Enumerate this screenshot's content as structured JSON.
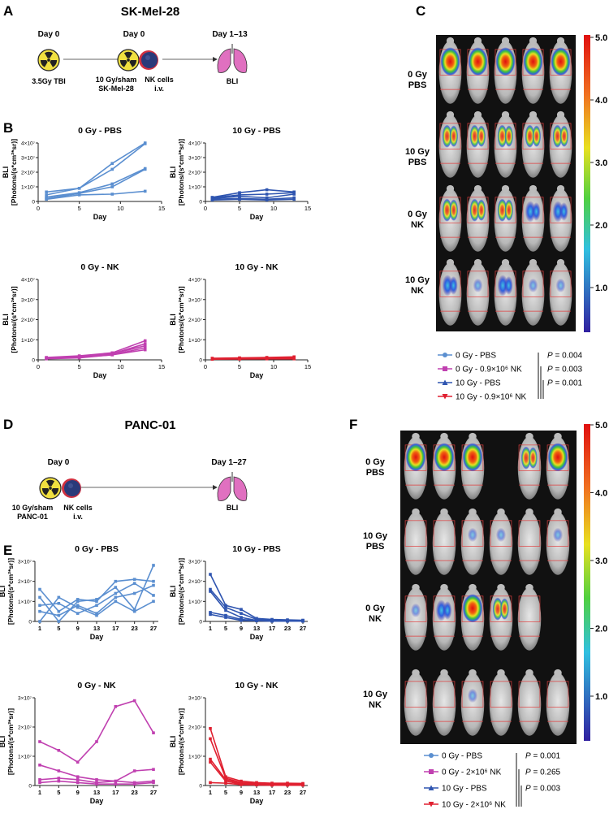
{
  "colors": {
    "pbs0": "#5b8fd0",
    "pbs10": "#2f55b0",
    "nk0": "#c040b0",
    "nk10": "#e02030",
    "lung": "#e070c0",
    "rad_yellow": "#f0e040",
    "cell_blue": "#2a3a7a",
    "cell_red": "#c02030"
  },
  "panelA": {
    "letter": "A",
    "title": "SK-Mel-28",
    "day_left": "Day 0",
    "day_mid": "Day 0",
    "day_right": "Day 1–13",
    "label_tbi": "3.5Gy TBI",
    "label_irr_1": "10 Gy/sham",
    "label_irr_2": "SK-Mel-28",
    "label_nk_1": "NK cells",
    "label_nk_2": "i.v.",
    "label_bli": "BLI"
  },
  "panelD": {
    "letter": "D",
    "title": "PANC-01",
    "day_left": "Day 0",
    "day_right": "Day 1–27",
    "label_irr_1": "10 Gy/sham",
    "label_irr_2": "PANC-01",
    "label_nk_1": "NK cells",
    "label_nk_2": "i.v.",
    "label_bli": "BLI"
  },
  "panelB": {
    "letter": "B"
  },
  "panelE": {
    "letter": "E"
  },
  "panelC": {
    "letter": "C",
    "rows": [
      [
        "0 Gy",
        "PBS"
      ],
      [
        "10 Gy",
        "PBS"
      ],
      [
        "0 Gy",
        "NK"
      ],
      [
        "10 Gy",
        "NK"
      ]
    ],
    "scale_ticks": [
      "5.0",
      "4.0",
      "3.0",
      "2.0",
      "1.0"
    ],
    "legend": [
      "0 Gy - PBS",
      "0 Gy - 0.9×10⁶ NK",
      "10 Gy - PBS",
      "10 Gy - 0.9×10⁶ NK"
    ],
    "pvalues": [
      "P = 0.004",
      "P = 0.003",
      "P = 0.001"
    ]
  },
  "panelF": {
    "letter": "F",
    "rows": [
      [
        "0 Gy",
        "PBS"
      ],
      [
        "10 Gy",
        "PBS"
      ],
      [
        "0 Gy",
        "NK"
      ],
      [
        "10 Gy",
        "NK"
      ]
    ],
    "scale_ticks": [
      "5.0",
      "4.0",
      "3.0",
      "2.0",
      "1.0"
    ],
    "legend": [
      "0 Gy - PBS",
      "0 Gy - 2×10⁶ NK",
      "10 Gy - PBS",
      "10 Gy - 2×10⁶ NK"
    ],
    "pvalues": [
      "P = 0.001",
      "P = 0.265",
      "P = 0.003"
    ]
  },
  "chart_data": [
    {
      "type": "line",
      "panel": "B",
      "title": "0 Gy - PBS",
      "xlabel": "Day",
      "ylabel": "BLI",
      "ylabel2": "[Photons/(s*cm²*sr)]",
      "xlim": [
        0,
        15
      ],
      "xticks": [
        0,
        5,
        10,
        15
      ],
      "ylim": [
        0,
        40000000
      ],
      "yticks": [
        "0",
        "1×10⁷",
        "2×10⁷",
        "3×10⁷",
        "4×10⁷"
      ],
      "x": [
        1,
        5,
        9,
        13
      ],
      "series": [
        {
          "name": "m1",
          "values": [
            6500000,
            9000000,
            26000000,
            40000000
          ]
        },
        {
          "name": "m2",
          "values": [
            4500000,
            9000000,
            22000000,
            39500000
          ]
        },
        {
          "name": "m3",
          "values": [
            3000000,
            6000000,
            12000000,
            22500000
          ]
        },
        {
          "name": "m4",
          "values": [
            2000000,
            5500000,
            10000000,
            22000000
          ]
        },
        {
          "name": "m5",
          "values": [
            1500000,
            4500000,
            5000000,
            7000000
          ]
        }
      ]
    },
    {
      "type": "line",
      "panel": "B",
      "title": "10 Gy - PBS",
      "xlabel": "Day",
      "ylabel": "BLI",
      "ylabel2": "[Photons/(s*cm²*sr)]",
      "xlim": [
        0,
        15
      ],
      "xticks": [
        0,
        5,
        10,
        15
      ],
      "ylim": [
        0,
        40000000
      ],
      "yticks": [
        "0",
        "1×10⁷",
        "2×10⁷",
        "3×10⁷",
        "4×10⁷"
      ],
      "x": [
        1,
        5,
        9,
        13
      ],
      "series": [
        {
          "name": "m1",
          "values": [
            2800000,
            6000000,
            8000000,
            6500000
          ]
        },
        {
          "name": "m2",
          "values": [
            2500000,
            4500000,
            5000000,
            6000000
          ]
        },
        {
          "name": "m3",
          "values": [
            2000000,
            3500000,
            2500000,
            5000000
          ]
        },
        {
          "name": "m4",
          "values": [
            1500000,
            2000000,
            1500000,
            2500000
          ]
        },
        {
          "name": "m5",
          "values": [
            1000000,
            1500000,
            1000000,
            1500000
          ]
        }
      ]
    },
    {
      "type": "line",
      "panel": "B",
      "title": "0 Gy - NK",
      "xlabel": "Day",
      "ylabel": "BLI",
      "ylabel2": "[Photons/(s*cm²*sr)]",
      "xlim": [
        0,
        15
      ],
      "xticks": [
        0,
        5,
        10,
        15
      ],
      "ylim": [
        0,
        40000000
      ],
      "yticks": [
        "0",
        "1×10⁷",
        "2×10⁷",
        "3×10⁷",
        "4×10⁷"
      ],
      "x": [
        1,
        5,
        9,
        13
      ],
      "series": [
        {
          "name": "m1",
          "values": [
            1200000,
            2000000,
            3500000,
            9500000
          ]
        },
        {
          "name": "m2",
          "values": [
            1000000,
            1800000,
            3000000,
            8000000
          ]
        },
        {
          "name": "m3",
          "values": [
            800000,
            1500000,
            3000000,
            7000000
          ]
        },
        {
          "name": "m4",
          "values": [
            700000,
            1200000,
            2500000,
            6000000
          ]
        },
        {
          "name": "m5",
          "values": [
            500000,
            1000000,
            2500000,
            5000000
          ]
        }
      ]
    },
    {
      "type": "line",
      "panel": "B",
      "title": "10 Gy - NK",
      "xlabel": "Day",
      "ylabel": "BLI",
      "ylabel2": "[Photons/(s*cm²*sr)]",
      "xlim": [
        0,
        15
      ],
      "xticks": [
        0,
        5,
        10,
        15
      ],
      "ylim": [
        0,
        40000000
      ],
      "yticks": [
        "0",
        "1×10⁷",
        "2×10⁷",
        "3×10⁷",
        "4×10⁷"
      ],
      "x": [
        1,
        5,
        9,
        13
      ],
      "series": [
        {
          "name": "m1",
          "values": [
            800000,
            1000000,
            1200000,
            1500000
          ]
        },
        {
          "name": "m2",
          "values": [
            600000,
            800000,
            1000000,
            1000000
          ]
        },
        {
          "name": "m3",
          "values": [
            500000,
            600000,
            700000,
            800000
          ]
        },
        {
          "name": "m4",
          "values": [
            300000,
            400000,
            500000,
            500000
          ]
        }
      ]
    },
    {
      "type": "line",
      "panel": "E",
      "title": "0 Gy - PBS",
      "xlabel": "Day",
      "ylabel": "BLI",
      "ylabel2": "[Photons/(s*cm²*sr)]",
      "xcats": [
        "1",
        "5",
        "9",
        "13",
        "17",
        "23",
        "27"
      ],
      "ylim": [
        0,
        30000000
      ],
      "yticks": [
        "0",
        "1×10⁷",
        "2×10⁷",
        "3×10⁷"
      ],
      "series": [
        {
          "name": "m1",
          "values": [
            16000000,
            5000000,
            11000000,
            10000000,
            20000000,
            21000000,
            20000000
          ]
        },
        {
          "name": "m2",
          "values": [
            12000000,
            0,
            10000000,
            11000000,
            17000000,
            6000000,
            28000000
          ]
        },
        {
          "name": "m3",
          "values": [
            8000000,
            9000000,
            4000000,
            8000000,
            14000000,
            19000000,
            13000000
          ]
        },
        {
          "name": "m4",
          "values": [
            5000000,
            3000000,
            8000000,
            4000000,
            12000000,
            14000000,
            18000000
          ]
        },
        {
          "name": "m5",
          "values": [
            0,
            12000000,
            7000000,
            3000000,
            10000000,
            5000000,
            10000000
          ]
        }
      ]
    },
    {
      "type": "line",
      "panel": "E",
      "title": "10 Gy - PBS",
      "xlabel": "Day",
      "ylabel": "BLI",
      "ylabel2": "[Photons/(s*cm²*sr)]",
      "xcats": [
        "1",
        "5",
        "9",
        "13",
        "17",
        "23",
        "27"
      ],
      "ylim": [
        0,
        30000000
      ],
      "yticks": [
        "0",
        "1×10⁷",
        "2×10⁷",
        "3×10⁷"
      ],
      "series": [
        {
          "name": "m1",
          "values": [
            23500000,
            8000000,
            6000000,
            1500000,
            1000000,
            800000,
            600000
          ]
        },
        {
          "name": "m2",
          "values": [
            16000000,
            7000000,
            4000000,
            1000000,
            500000,
            400000,
            500000
          ]
        },
        {
          "name": "m3",
          "values": [
            15000000,
            5500000,
            2000000,
            500000,
            300000,
            300000,
            300000
          ]
        },
        {
          "name": "m4",
          "values": [
            4500000,
            3000000,
            1000000,
            400000,
            200000,
            200000,
            200000
          ]
        },
        {
          "name": "m5",
          "values": [
            3500000,
            2000000,
            500000,
            300000,
            100000,
            100000,
            100000
          ]
        }
      ]
    },
    {
      "type": "line",
      "panel": "E",
      "title": "0 Gy - NK",
      "xlabel": "Day",
      "ylabel": "BLI",
      "ylabel2": "[Photons/(s*cm²*sr)]",
      "xcats": [
        "1",
        "5",
        "9",
        "13",
        "17",
        "23",
        "27"
      ],
      "ylim": [
        0,
        30000000
      ],
      "yticks": [
        "0",
        "1×10⁷",
        "2×10⁷",
        "3×10⁷"
      ],
      "series": [
        {
          "name": "m1",
          "values": [
            15000000,
            12000000,
            8000000,
            15000000,
            27000000,
            29000000,
            18000000
          ]
        },
        {
          "name": "m2",
          "values": [
            7000000,
            5000000,
            3000000,
            2000000,
            1500000,
            5000000,
            5500000
          ]
        },
        {
          "name": "m3",
          "values": [
            2000000,
            2500000,
            2000000,
            1000000,
            1500000,
            1000000,
            1500000
          ]
        },
        {
          "name": "m4",
          "values": [
            1000000,
            1500000,
            1000000,
            500000,
            500000,
            500000,
            1000000
          ]
        }
      ]
    },
    {
      "type": "line",
      "panel": "E",
      "title": "10 Gy - NK",
      "xlabel": "Day",
      "ylabel": "BLI",
      "ylabel2": "[Photons/(s*cm²*sr)]",
      "xcats": [
        "1",
        "5",
        "9",
        "13",
        "17",
        "23",
        "27"
      ],
      "ylim": [
        0,
        30000000
      ],
      "yticks": [
        "0",
        "1×10⁷",
        "2×10⁷",
        "3×10⁷"
      ],
      "series": [
        {
          "name": "m1",
          "values": [
            19500000,
            3000000,
            1500000,
            1000000,
            800000,
            800000,
            700000
          ]
        },
        {
          "name": "m2",
          "values": [
            16000000,
            2500000,
            1000000,
            800000,
            500000,
            500000,
            500000
          ]
        },
        {
          "name": "m3",
          "values": [
            9000000,
            2000000,
            800000,
            500000,
            300000,
            300000,
            300000
          ]
        },
        {
          "name": "m4",
          "values": [
            8000000,
            1500000,
            500000,
            300000,
            200000,
            200000,
            200000
          ]
        },
        {
          "name": "m5",
          "values": [
            1000000,
            800000,
            300000,
            200000,
            100000,
            100000,
            100000
          ]
        }
      ]
    }
  ]
}
